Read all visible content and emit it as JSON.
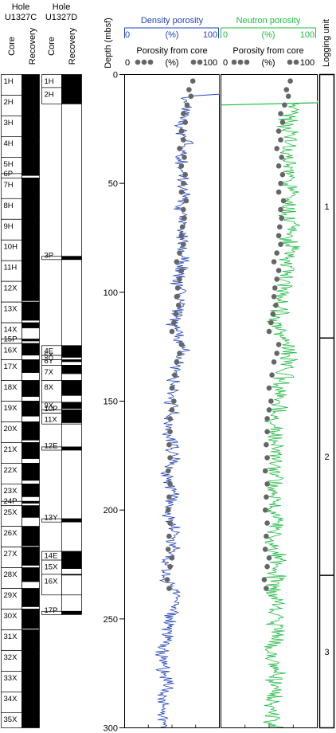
{
  "holes": [
    {
      "title_line1": "Hole",
      "title_line2": "U1327C"
    },
    {
      "title_line1": "Hole",
      "title_line2": "U1327D"
    }
  ],
  "col_headers": {
    "core": "Core",
    "recovery": "Recovery"
  },
  "depth_label": "Depth (mbsf)",
  "logging_unit_label": "Logging unit",
  "density_panel": {
    "title": "Density porosity",
    "scale": {
      "min": "0",
      "unit": "(%)",
      "max": "100"
    },
    "core_label": "Porosity from core",
    "core_scale": {
      "min": "0",
      "unit": "(%)",
      "max": "100"
    },
    "color": "#2244bb"
  },
  "neutron_panel": {
    "title": "Neutron porosity",
    "scale": {
      "min": "0",
      "unit": "(%)",
      "max": "100"
    },
    "core_label": "Porosity from core",
    "core_scale": {
      "min": "0",
      "unit": "(%)",
      "max": "100"
    },
    "color": "#22bb44"
  },
  "core_point_color": "#666666",
  "cores_U1327C": [
    {
      "name": "1H",
      "top": 0,
      "bottom": 9.5,
      "recovered": 9.5
    },
    {
      "name": "2H",
      "top": 9.5,
      "bottom": 19,
      "recovered": 9.5
    },
    {
      "name": "3H",
      "top": 19,
      "bottom": 28.5,
      "recovered": 9.5
    },
    {
      "name": "4H",
      "top": 28.5,
      "bottom": 38,
      "recovered": 9.5
    },
    {
      "name": "5H",
      "top": 38,
      "bottom": 45.5,
      "recovered": 7.5
    },
    {
      "name": "6P",
      "top": 45.5,
      "bottom": 47.5,
      "recovered": 1
    },
    {
      "name": "7H",
      "top": 47.5,
      "bottom": 57,
      "recovered": 9.5
    },
    {
      "name": "8H",
      "top": 57,
      "bottom": 66.5,
      "recovered": 9.5
    },
    {
      "name": "9H",
      "top": 66.5,
      "bottom": 76,
      "recovered": 9.5
    },
    {
      "name": "10H",
      "top": 76,
      "bottom": 85.5,
      "recovered": 9.5
    },
    {
      "name": "11H",
      "top": 85.5,
      "bottom": 95,
      "recovered": 9.5
    },
    {
      "name": "12X",
      "top": 95,
      "bottom": 104.5,
      "recovered": 9
    },
    {
      "name": "13X",
      "top": 104.5,
      "bottom": 114,
      "recovered": 8.5
    },
    {
      "name": "14X",
      "top": 114,
      "bottom": 121.5,
      "recovered": 2.5
    },
    {
      "name": "15P",
      "top": 121.5,
      "bottom": 123.5,
      "recovered": 1
    },
    {
      "name": "16X",
      "top": 123.5,
      "bottom": 131,
      "recovered": 5.5
    },
    {
      "name": "17X",
      "top": 131,
      "bottom": 140.5,
      "recovered": 6
    },
    {
      "name": "18X",
      "top": 140.5,
      "bottom": 150,
      "recovered": 7.5
    },
    {
      "name": "19X",
      "top": 150,
      "bottom": 159.5,
      "recovered": 7
    },
    {
      "name": "20X",
      "top": 159.5,
      "bottom": 169,
      "recovered": 8.5
    },
    {
      "name": "21X",
      "top": 169,
      "bottom": 178.5,
      "recovered": 7.5
    },
    {
      "name": "22X",
      "top": 178.5,
      "bottom": 188,
      "recovered": 8
    },
    {
      "name": "23X",
      "top": 188,
      "bottom": 196,
      "recovered": 6
    },
    {
      "name": "24P",
      "top": 196,
      "bottom": 198,
      "recovered": 1
    },
    {
      "name": "25X",
      "top": 198,
      "bottom": 207.5,
      "recovered": 5.5
    },
    {
      "name": "26X",
      "top": 207.5,
      "bottom": 217,
      "recovered": 9
    },
    {
      "name": "27X",
      "top": 217,
      "bottom": 226.5,
      "recovered": 8.5
    },
    {
      "name": "28X",
      "top": 226.5,
      "bottom": 236,
      "recovered": 6.5
    },
    {
      "name": "29X",
      "top": 236,
      "bottom": 245.5,
      "recovered": 8.5
    },
    {
      "name": "30X",
      "top": 245.5,
      "bottom": 255,
      "recovered": 9
    },
    {
      "name": "31X",
      "top": 255,
      "bottom": 264.5,
      "recovered": 9.5
    },
    {
      "name": "32X",
      "top": 264.5,
      "bottom": 274,
      "recovered": 9.5
    },
    {
      "name": "33X",
      "top": 274,
      "bottom": 283.5,
      "recovered": 9.5
    },
    {
      "name": "34X",
      "top": 283.5,
      "bottom": 293,
      "recovered": 9.5
    },
    {
      "name": "35X",
      "top": 293,
      "bottom": 300,
      "recovered": 7
    }
  ],
  "cores_U1327D": [
    {
      "name": "1H",
      "top": 0,
      "bottom": 6,
      "recovered": 6
    },
    {
      "name": "2H",
      "top": 6,
      "bottom": 13.5,
      "recovered": 7.5
    },
    {
      "name": "",
      "top": 13.5,
      "bottom": 83.5,
      "recovered": 0
    },
    {
      "name": "3P",
      "top": 83.5,
      "bottom": 85,
      "recovered": 1.5
    },
    {
      "name": "",
      "top": 85,
      "bottom": 124.5,
      "recovered": 0
    },
    {
      "name": "4E",
      "top": 124.5,
      "bottom": 129,
      "recovered": 4.5
    },
    {
      "name": "5X",
      "top": 129,
      "bottom": 131,
      "recovered": 1
    },
    {
      "name": "6Y",
      "top": 131,
      "bottom": 133.5,
      "recovered": 1
    },
    {
      "name": "7X",
      "top": 133.5,
      "bottom": 140.5,
      "recovered": 4
    },
    {
      "name": "8X",
      "top": 140.5,
      "bottom": 150.5,
      "recovered": 7
    },
    {
      "name": "9X",
      "top": 150.5,
      "bottom": 154,
      "recovered": 3
    },
    {
      "name": "10P",
      "top": 154,
      "bottom": 155.5,
      "recovered": 1.5
    },
    {
      "name": "11X",
      "top": 155.5,
      "bottom": 160.5,
      "recovered": 4.5
    },
    {
      "name": "",
      "top": 160.5,
      "bottom": 171,
      "recovered": 0
    },
    {
      "name": "12E",
      "top": 171,
      "bottom": 172.5,
      "recovered": 1.5
    },
    {
      "name": "",
      "top": 172.5,
      "bottom": 204,
      "recovered": 0
    },
    {
      "name": "13Y",
      "top": 204,
      "bottom": 205.5,
      "recovered": 1.5
    },
    {
      "name": "",
      "top": 205.5,
      "bottom": 219,
      "recovered": 0
    },
    {
      "name": "14E",
      "top": 219,
      "bottom": 223,
      "recovered": 4
    },
    {
      "name": "15X",
      "top": 223,
      "bottom": 229.5,
      "recovered": 4
    },
    {
      "name": "16X",
      "top": 229.5,
      "bottom": 239,
      "recovered": 0.5
    },
    {
      "name": "",
      "top": 239,
      "bottom": 246.5,
      "recovered": 0
    },
    {
      "name": "17P",
      "top": 246.5,
      "bottom": 248,
      "recovered": 1.5
    }
  ],
  "logging_units": [
    {
      "name": "1",
      "top": 0,
      "bottom": 121
    },
    {
      "name": "2",
      "top": 121,
      "bottom": 230
    },
    {
      "name": "3",
      "top": 230,
      "bottom": 300
    }
  ],
  "chart_data": {
    "type": "line",
    "title": "",
    "ylabel": "Depth (mbsf)",
    "ylim": [
      0,
      300
    ],
    "yticks": [
      0,
      50,
      100,
      150,
      200,
      250,
      300
    ],
    "xlim": [
      0,
      100
    ],
    "series": [
      {
        "name": "Density porosity",
        "depth": [
          10,
          15,
          20,
          25,
          30,
          35,
          40,
          45,
          50,
          55,
          60,
          65,
          70,
          75,
          80,
          85,
          90,
          95,
          100,
          105,
          110,
          115,
          120,
          125,
          130,
          135,
          140,
          145,
          150,
          155,
          160,
          165,
          170,
          175,
          180,
          185,
          190,
          195,
          200,
          205,
          210,
          215,
          220,
          225,
          230,
          235,
          240,
          245,
          250,
          255,
          260,
          265,
          270,
          275,
          280,
          285,
          290,
          295,
          300
        ],
        "values": [
          68,
          66,
          62,
          60,
          65,
          62,
          58,
          63,
          60,
          62,
          58,
          62,
          60,
          63,
          60,
          62,
          58,
          56,
          60,
          58,
          55,
          52,
          58,
          62,
          58,
          55,
          52,
          50,
          48,
          52,
          48,
          45,
          50,
          52,
          48,
          45,
          50,
          48,
          45,
          48,
          52,
          50,
          50,
          45,
          42,
          48,
          58,
          52,
          48,
          45,
          42,
          40,
          43,
          42,
          45,
          40,
          42,
          40,
          42
        ]
      },
      {
        "name": "Neutron porosity",
        "depth": [
          13,
          15,
          20,
          25,
          30,
          35,
          40,
          45,
          50,
          55,
          60,
          65,
          70,
          75,
          80,
          85,
          90,
          95,
          100,
          105,
          110,
          115,
          120,
          125,
          130,
          135,
          140,
          145,
          150,
          155,
          160,
          165,
          170,
          175,
          180,
          185,
          190,
          195,
          200,
          205,
          210,
          215,
          220,
          225,
          230,
          235,
          240,
          245,
          250,
          255,
          260,
          265,
          270,
          275,
          280,
          285,
          290,
          295,
          300
        ],
        "values": [
          75,
          78,
          70,
          68,
          72,
          70,
          68,
          72,
          70,
          75,
          72,
          70,
          73,
          70,
          72,
          70,
          68,
          65,
          66,
          62,
          60,
          58,
          62,
          70,
          72,
          68,
          65,
          62,
          60,
          58,
          55,
          58,
          56,
          55,
          58,
          55,
          53,
          56,
          55,
          58,
          56,
          55,
          58,
          60,
          58,
          55,
          58,
          55,
          56,
          58,
          55,
          52,
          55,
          58,
          52,
          55,
          56,
          52,
          55
        ]
      },
      {
        "name": "Porosity from core",
        "depth": [
          3,
          7,
          10,
          14,
          18,
          22,
          26,
          30,
          34,
          38,
          42,
          46,
          50,
          54,
          58,
          62,
          66,
          70,
          74,
          78,
          82,
          86,
          90,
          94,
          98,
          102,
          106,
          110,
          114,
          118,
          124,
          128,
          132,
          138,
          144,
          150,
          154,
          158,
          164,
          170,
          176,
          182,
          188,
          194,
          200,
          206,
          212,
          218,
          222,
          226,
          232,
          236
        ],
        "values": [
          72,
          68,
          70,
          66,
          62,
          64,
          60,
          62,
          58,
          63,
          60,
          64,
          62,
          60,
          65,
          62,
          63,
          61,
          60,
          62,
          58,
          55,
          60,
          58,
          56,
          55,
          57,
          54,
          52,
          50,
          60,
          58,
          55,
          53,
          50,
          52,
          50,
          48,
          48,
          47,
          48,
          46,
          48,
          47,
          46,
          48,
          47,
          46,
          50,
          48,
          45,
          47
        ]
      }
    ]
  }
}
